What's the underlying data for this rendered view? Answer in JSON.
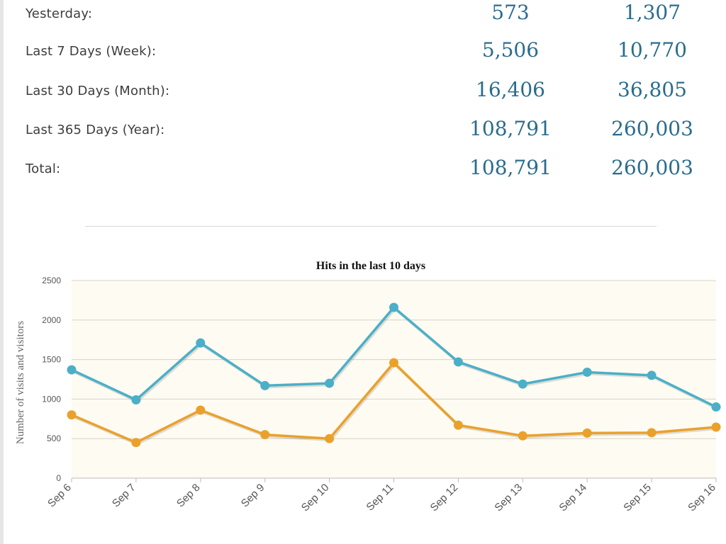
{
  "stats": [
    {
      "label": "Yesterday:",
      "visits": "573",
      "visitors": "1,307"
    },
    {
      "label": "Last 7 Days (Week):",
      "visits": "5,506",
      "visitors": "10,770"
    },
    {
      "label": "Last 30 Days (Month):",
      "visits": "16,406",
      "visitors": "36,805"
    },
    {
      "label": "Last 365 Days (Year):",
      "visits": "108,791",
      "visitors": "260,003"
    },
    {
      "label": "Total:",
      "visits": "108,791",
      "visitors": "260,003"
    }
  ],
  "chart_data": {
    "type": "line",
    "title": "Hits in the last 10 days",
    "ylabel": "Number of visits and visitors",
    "xlabel": "",
    "categories": [
      "Sep 6",
      "Sep 7",
      "Sep 8",
      "Sep 9",
      "Sep 10",
      "Sep 11",
      "Sep 12",
      "Sep 13",
      "Sep 14",
      "Sep 15",
      "Sep 16"
    ],
    "ylim": [
      0,
      2500
    ],
    "yticks": [
      0,
      500,
      1000,
      1500,
      2000,
      2500
    ],
    "grid": true,
    "background": "#fdfbf2",
    "series": [
      {
        "color": "#4bafc8",
        "values": [
          1370,
          990,
          1710,
          1170,
          1200,
          2160,
          1470,
          1190,
          1340,
          1300,
          900
        ]
      },
      {
        "color": "#eaa12b",
        "values": [
          800,
          450,
          860,
          550,
          500,
          1460,
          670,
          535,
          570,
          575,
          645
        ]
      }
    ]
  }
}
